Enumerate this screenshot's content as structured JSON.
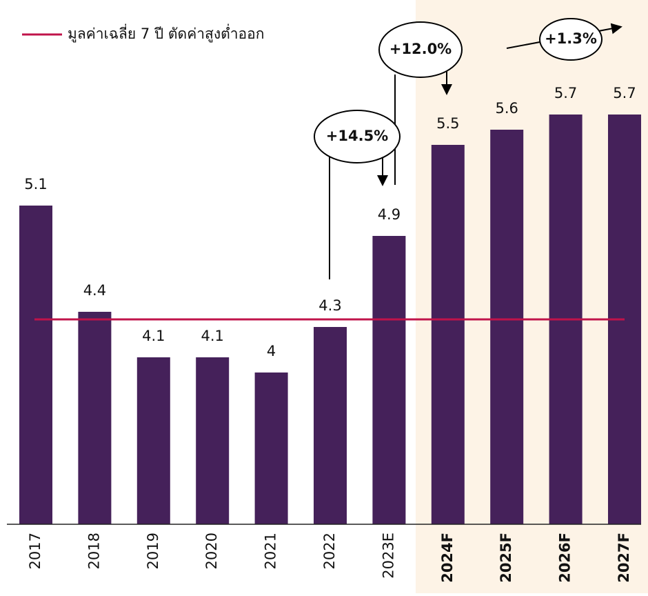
{
  "chart_data": {
    "type": "bar",
    "categories": [
      "2017",
      "2018",
      "2019",
      "2020",
      "2021",
      "2022",
      "2023E",
      "2024F",
      "2025F",
      "2026F",
      "2027F"
    ],
    "values": [
      5.1,
      4.4,
      4.1,
      4.1,
      4.0,
      4.3,
      4.9,
      5.5,
      5.6,
      5.7,
      5.7
    ],
    "color": "#45215a",
    "ylim": [
      3.0,
      5.95
    ],
    "average": {
      "name": "มูลค่าเฉลี่ย 7 ปี ตัดค่าสูงต่ำออก",
      "value": 4.35,
      "color": "#c0134a"
    },
    "annotations": [
      "+14.5%",
      "+12.0%",
      "+1.3%"
    ]
  }
}
